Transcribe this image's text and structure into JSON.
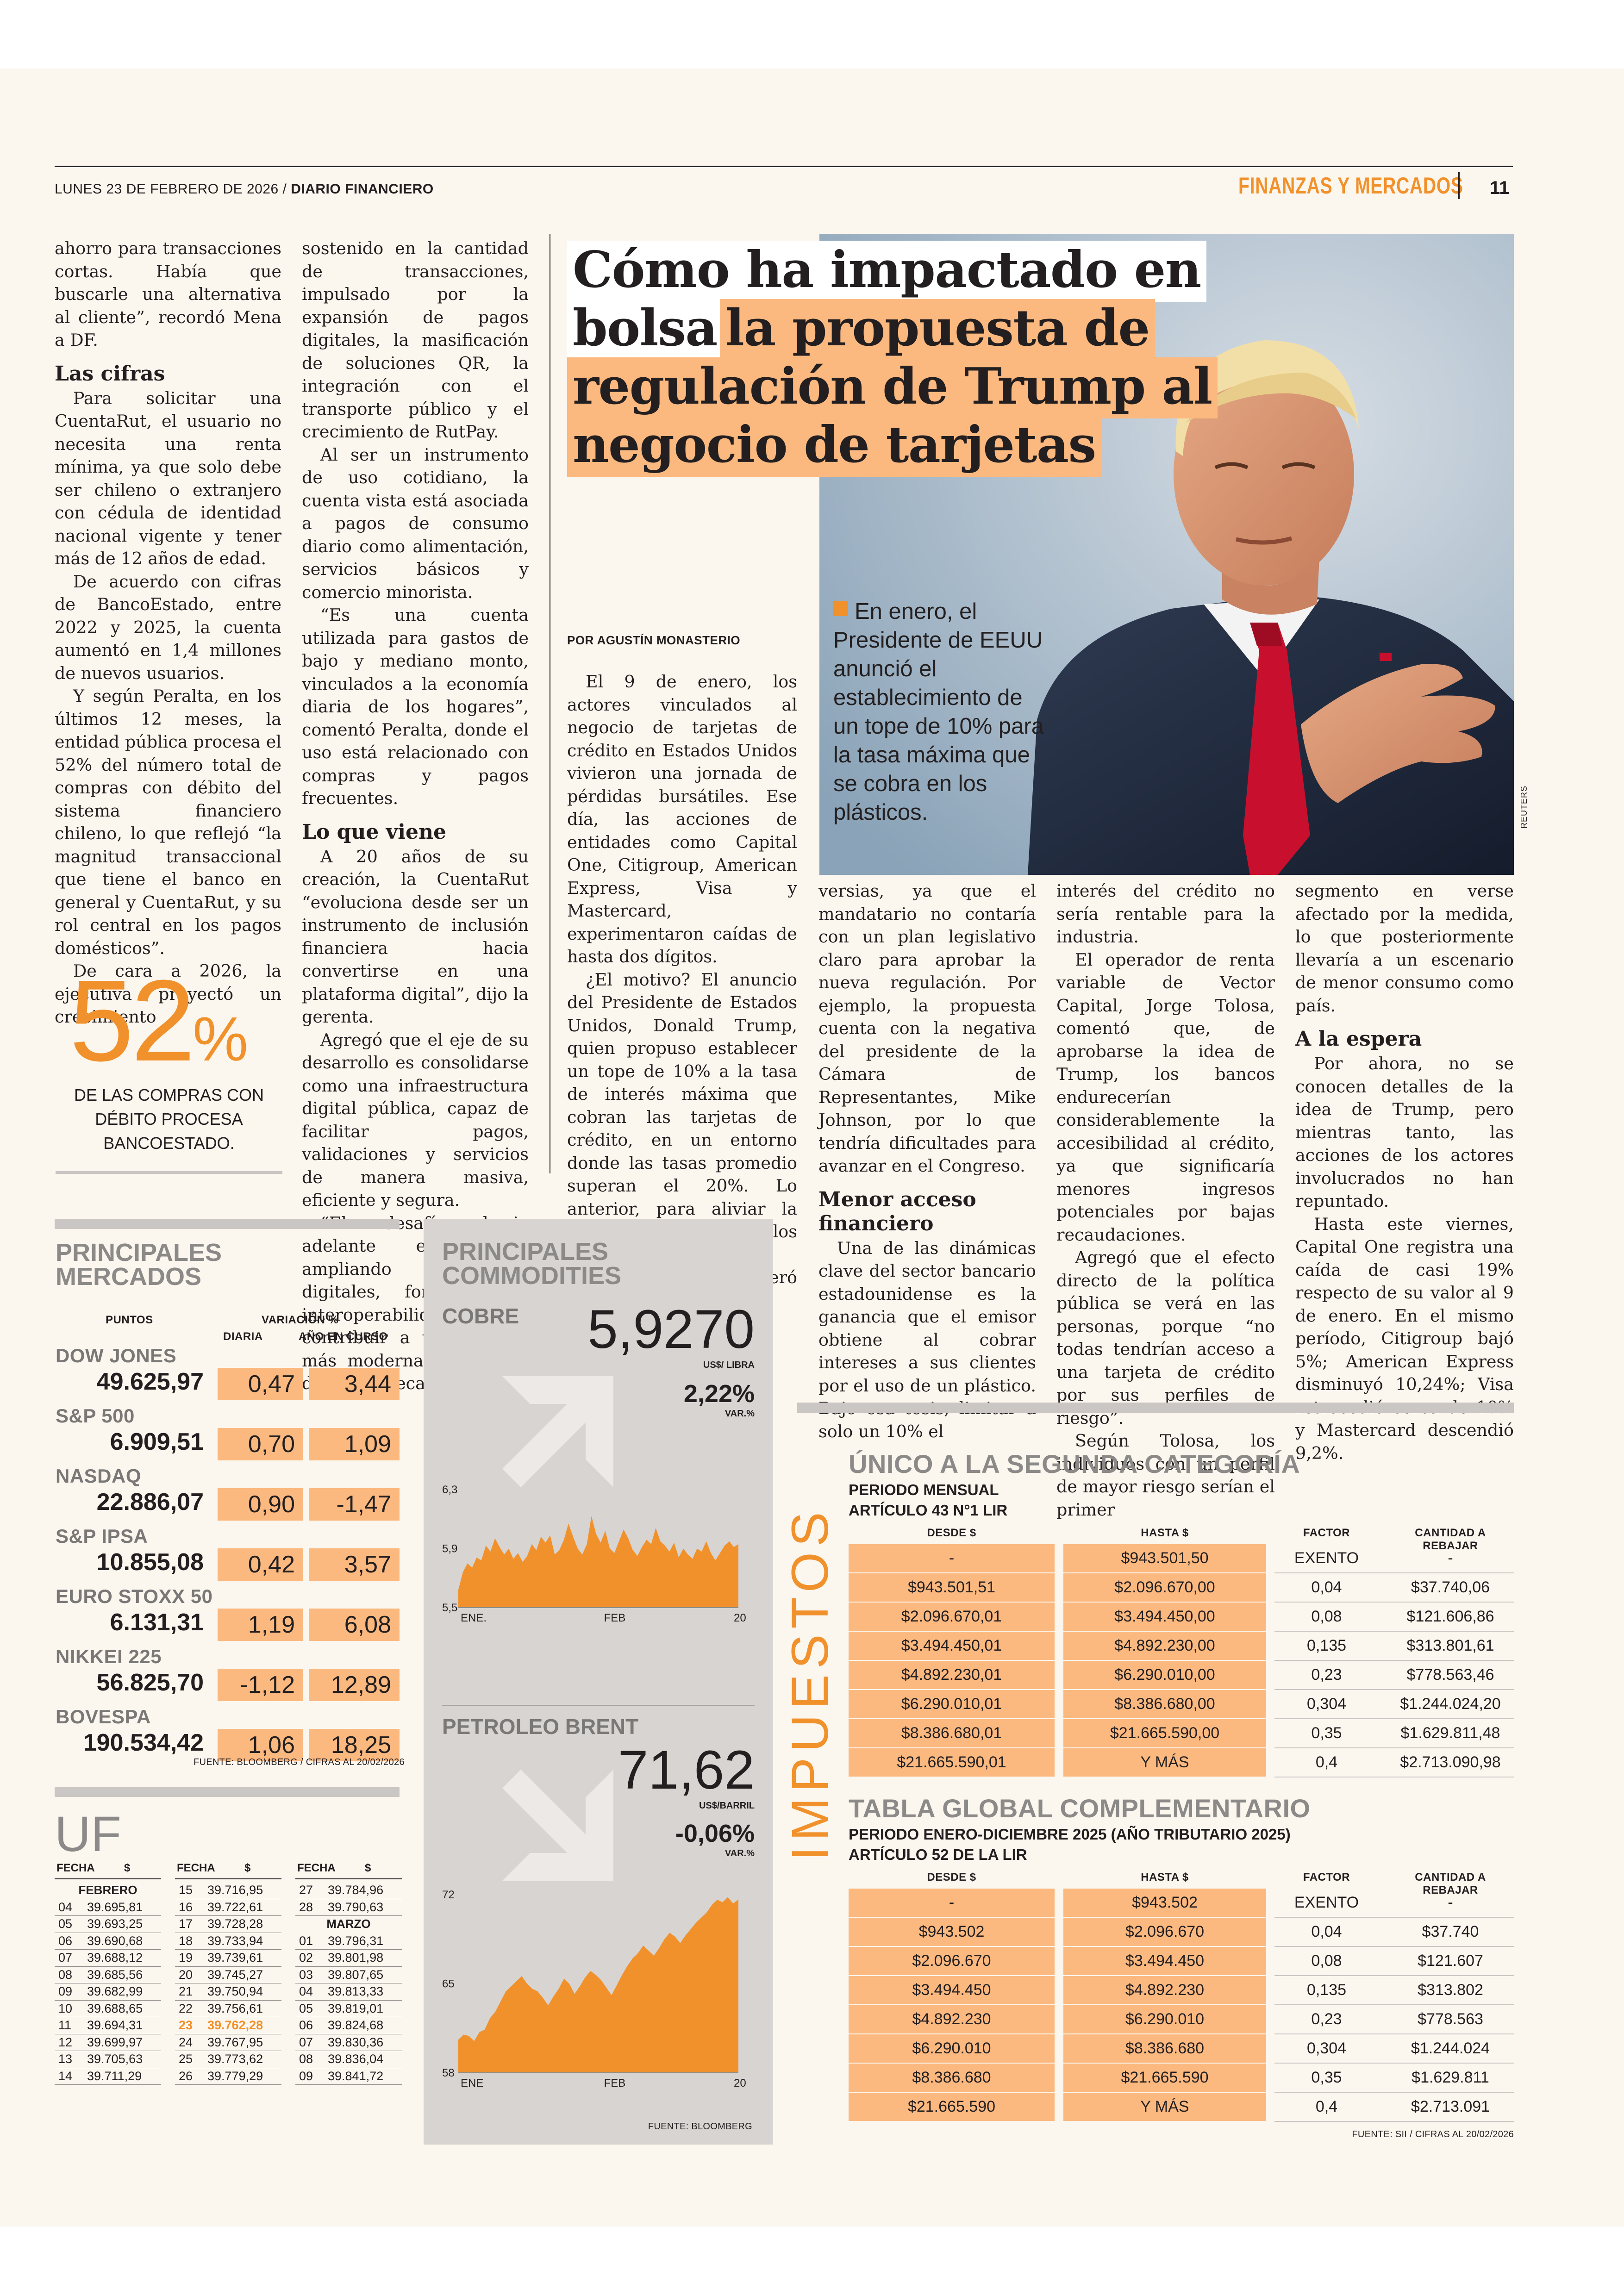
{
  "header": {
    "date": "LUNES 23 DE FEBRERO DE 2026",
    "sep": "/",
    "paper": "DIARIO FINANCIERO",
    "section": "FINANZAS Y MERCADOS",
    "page": "11"
  },
  "left_article": {
    "col1": [
      {
        "type": "p",
        "noind": true,
        "text": "ahorro para transacciones cortas. Había que buscarle una alternativa al cliente”, recordó Mena a DF."
      },
      {
        "type": "h",
        "text": "Las cifras"
      },
      {
        "type": "p",
        "text": "Para solicitar una CuentaRut, el usuario no necesita una renta mínima, ya que solo debe ser chileno o extranjero con cédula de identidad nacional vigente y tener más de 12 años de edad."
      },
      {
        "type": "p",
        "text": "De acuerdo con cifras de BancoEstado, entre 2022 y 2025, la cuenta aumentó en 1,4 millones de nuevos usuarios."
      },
      {
        "type": "p",
        "text": "Y según Peralta, en los últimos 12 meses, la entidad pública procesa el 52% del número total de compras con débito del sistema financiero chileno, lo que reflejó “la magnitud transaccional que tiene el banco en general y CuentaRut, y su rol central en los pagos domésticos”."
      },
      {
        "type": "p",
        "text": "De cara a 2026, la ejecutiva proyectó un crecimiento"
      }
    ],
    "col2": [
      {
        "type": "p",
        "noind": true,
        "text": "sostenido en la cantidad de transacciones, impulsado por la expansión de pagos digitales, la masificación de soluciones QR, la integración con el transporte público y el crecimiento de RutPay."
      },
      {
        "type": "p",
        "text": "Al ser un instrumento de uso cotidiano, la cuenta vista está asociada a pagos de consumo diario como alimentación, servicios básicos y comercio minorista."
      },
      {
        "type": "p",
        "text": "“Es una cuenta utilizada para gastos de bajo y mediano monto, vinculados a la economía diaria de los hogares”, comentó Peralta, donde el uso está relacionado con compras y pagos frecuentes."
      },
      {
        "type": "h",
        "text": "Lo que viene"
      },
      {
        "type": "p",
        "text": "A 20 años de su creación, la CuentaRut “evoluciona desde ser un instrumento de inclusión financiera hacia convertirse en una plataforma digital”, dijo la gerenta."
      },
      {
        "type": "p",
        "text": "Agregó que el eje de su desarrollo es consolidarse como una infraestructura digital pública, capaz de facilitar pagos, validaciones y servicios de manera masiva, eficiente y segura."
      },
      {
        "type": "p",
        "text": "“El desafío hacia adelante es seguir ampliando capacidades digitales, fortalecer la interoperabilidad y contribuir a una gestión más moderna y eficiente del país”, recalcó."
      }
    ],
    "stat_value": "52",
    "stat_unit": "%",
    "stat_caption": "DE LAS COMPRAS CON DÉBITO PROCESA BANCOESTADO."
  },
  "main_article": {
    "title_lines": [
      "Cómo ha impactado en",
      "bolsa la propuesta de",
      "regulación de Trump al",
      "negocio de tarjetas"
    ],
    "title_pre": "Cómo ha impactado en",
    "title_l2a": "bolsa",
    "title_l2b": "la propuesta de",
    "title_l3": "regulación de Trump al",
    "title_l4": "negocio de tarjetas",
    "byline": "POR AGUSTÍN MONASTERIO",
    "photo_caption": "En enero, el Presidente de EEUU anunció el establecimiento de un tope de 10% para la tasa máxima que se cobra en los plásticos.",
    "photo_credit": "REUTERS",
    "col3": [
      {
        "type": "p",
        "text": "El 9 de enero, los actores vinculados al negocio de tarjetas de crédito en Estados Unidos vivieron una jornada de pérdidas bursátiles. Ese día, las acciones de entidades como Capital One, Citigroup, American Express, Visa y Mastercard, experimentaron caídas de hasta dos dígitos."
      },
      {
        "type": "p",
        "text": "¿El motivo? El anuncio del Presidente de Estados Unidos, Donald Trump, quien propuso establecer un tope de 10% a la tasa de interés máxima que cobran las tarjetas de crédito, en un entorno donde las tasas promedio superan el 20%. Lo anterior, para aliviar la carga crediticia de los estadounidenses."
      },
      {
        "type": "p",
        "text": "La medida generó contro-"
      }
    ],
    "col4": [
      {
        "type": "p",
        "noind": true,
        "text": "versias, ya que el mandatario no contaría con un plan legislativo claro para aprobar la nueva regulación. Por ejemplo, la propuesta cuenta con la negativa del presidente de la Cámara de Representantes, Mike Johnson, por lo que tendría dificultades para avanzar en el Congreso."
      },
      {
        "type": "h",
        "text": "Menor acceso financiero"
      },
      {
        "type": "p",
        "text": "Una de las dinámicas clave del sector bancario estadounidense es la ganancia que el emisor obtiene al cobrar intereses a sus clientes por el uso de un plástico. Bajo esa tesis, limitar a solo un 10% el"
      }
    ],
    "col5": [
      {
        "type": "p",
        "noind": true,
        "text": "interés del crédito no sería rentable para la industria."
      },
      {
        "type": "p",
        "text": "El operador de renta variable de Vector Capital, Jorge Tolosa, comentó que, de aprobarse la idea de Trump, los bancos endurecerían considerablemente la accesibilidad al crédito, ya que significaría menores ingresos potenciales por bajas recaudaciones."
      },
      {
        "type": "p",
        "text": "Agregó que el efecto directo de la política pública se verá en las personas, porque “no todas tendrían acceso a una tarjeta de crédito por sus perfiles de riesgo”."
      },
      {
        "type": "p",
        "text": "Según Tolosa, los individuos con un perfil de mayor riesgo serían el primer"
      }
    ],
    "col6": [
      {
        "type": "p",
        "noind": true,
        "text": "segmento en verse afectado por la medida, lo que posteriormente llevaría a un escenario de menor consumo como país."
      },
      {
        "type": "h",
        "text": "A la espera"
      },
      {
        "type": "p",
        "text": "Por ahora, no se conocen detalles de la idea de Trump, pero mientras tanto, las acciones de los actores involucrados no han repuntado."
      },
      {
        "type": "p",
        "text": "Hasta este viernes, Capital One registra una caída de casi 19% respecto de su valor al 9 de enero. En el mismo período, Citigroup bajó 5%; American Express disminuyó 10,24%; Visa retrocedió cerca de 10% y Mastercard descendió 9,2%."
      }
    ]
  },
  "markets": {
    "title_l1": "PRINCIPALES",
    "title_l2": "MERCADOS",
    "hdr_points": "PUNTOS",
    "hdr_variation": "VARIACIÓN %",
    "hdr_daily": "DIARIA",
    "hdr_ytd": "AÑO EN CURSO",
    "rows": [
      {
        "name": "DOW JONES",
        "points": "49.625,97",
        "daily": "0,47",
        "ytd": "3,44"
      },
      {
        "name": "S&P 500",
        "points": "6.909,51",
        "daily": "0,70",
        "ytd": "1,09"
      },
      {
        "name": "NASDAQ",
        "points": "22.886,07",
        "daily": "0,90",
        "ytd": "-1,47"
      },
      {
        "name": "S&P IPSA",
        "points": "10.855,08",
        "daily": "0,42",
        "ytd": "3,57"
      },
      {
        "name": "EURO STOXX 50",
        "points": "6.131,31",
        "daily": "1,19",
        "ytd": "6,08"
      },
      {
        "name": "NIKKEI 225",
        "points": "56.825,70",
        "daily": "-1,12",
        "ytd": "12,89"
      },
      {
        "name": "BOVESPA",
        "points": "190.534,42",
        "daily": "1,06",
        "ytd": "18,25"
      }
    ],
    "source": "FUENTE: BLOOMBERG / CIFRAS AL 20/02/2026"
  },
  "uf": {
    "title": "UF",
    "hdr_date": "FECHA",
    "hdr_value": "$",
    "month1": "FEBRERO",
    "month2": "MARZO",
    "col1": [
      [
        "04",
        "39.695,81"
      ],
      [
        "05",
        "39.693,25"
      ],
      [
        "06",
        "39.690,68"
      ],
      [
        "07",
        "39.688,12"
      ],
      [
        "08",
        "39.685,56"
      ],
      [
        "09",
        "39.682,99"
      ],
      [
        "10",
        "39.688,65"
      ],
      [
        "11",
        "39.694,31"
      ],
      [
        "12",
        "39.699,97"
      ],
      [
        "13",
        "39.705,63"
      ],
      [
        "14",
        "39.711,29"
      ]
    ],
    "col2": [
      [
        "15",
        "39.716,95"
      ],
      [
        "16",
        "39.722,61"
      ],
      [
        "17",
        "39.728,28"
      ],
      [
        "18",
        "39.733,94"
      ],
      [
        "19",
        "39.739,61"
      ],
      [
        "20",
        "39.745,27"
      ],
      [
        "21",
        "39.750,94"
      ],
      [
        "22",
        "39.756,61"
      ],
      [
        "23",
        "39.762,28"
      ],
      [
        "24",
        "39.767,95"
      ],
      [
        "25",
        "39.773,62"
      ],
      [
        "26",
        "39.779,29"
      ]
    ],
    "col3a": [
      [
        "27",
        "39.784,96"
      ],
      [
        "28",
        "39.790,63"
      ]
    ],
    "col3b": [
      [
        "01",
        "39.796,31"
      ],
      [
        "02",
        "39.801,98"
      ],
      [
        "03",
        "39.807,65"
      ],
      [
        "04",
        "39.813,33"
      ],
      [
        "05",
        "39.819,01"
      ],
      [
        "06",
        "39.824,68"
      ],
      [
        "07",
        "39.830,36"
      ],
      [
        "08",
        "39.836,04"
      ],
      [
        "09",
        "39.841,72"
      ]
    ],
    "highlight_color": "#f1912b"
  },
  "commodities": {
    "title_l1": "PRINCIPALES",
    "title_l2": "COMMODITIES",
    "copper": {
      "name": "COBRE",
      "value": "5,9270",
      "unit": "US$/ LIBRA",
      "change": "2,22%",
      "change_label": "VAR.%"
    },
    "brent": {
      "name": "PETROLEO BRENT",
      "value": "71,62",
      "unit": "US$/BARRIL",
      "change": "-0,06%",
      "change_label": "VAR.%"
    },
    "source": "FUENTE: BLOOMBERG"
  },
  "chart_data": [
    {
      "type": "area",
      "y_ticks": [
        "6,3",
        "5,9",
        "5,5"
      ],
      "x_ticks": [
        "ENE.",
        "FEB",
        "20"
      ],
      "ylim": [
        5.5,
        6.3
      ],
      "values": [
        5.62,
        5.74,
        5.8,
        5.77,
        5.84,
        5.82,
        5.92,
        5.88,
        5.97,
        5.91,
        5.86,
        5.9,
        5.83,
        5.87,
        5.81,
        5.85,
        5.93,
        5.89,
        5.98,
        5.94,
        5.99,
        5.86,
        5.89,
        5.96,
        6.07,
        5.98,
        5.9,
        5.86,
        5.93,
        6.12,
        6.0,
        5.94,
        6.02,
        5.9,
        5.87,
        5.95,
        6.03,
        5.97,
        5.89,
        5.85,
        5.91,
        5.96,
        5.93,
        6.04,
        5.95,
        5.92,
        5.88,
        5.94,
        5.84,
        5.9,
        5.86,
        5.83,
        5.9,
        5.88,
        5.95,
        5.87,
        5.82,
        5.87,
        5.92,
        5.95,
        5.91,
        5.93
      ]
    },
    {
      "type": "area",
      "y_ticks": [
        "72",
        "65",
        "58"
      ],
      "x_ticks": [
        "ENE",
        "FEB",
        "20"
      ],
      "ylim": [
        58,
        72
      ],
      "values": [
        60.6,
        61.0,
        60.9,
        60.5,
        61.2,
        61.4,
        62.3,
        62.8,
        63.6,
        64.4,
        64.8,
        65.2,
        65.6,
        65.0,
        64.6,
        64.4,
        63.9,
        63.3,
        64.0,
        64.6,
        65.4,
        65.0,
        64.2,
        64.8,
        65.5,
        66.0,
        65.7,
        65.3,
        64.7,
        64.1,
        64.9,
        65.7,
        66.4,
        67.0,
        67.4,
        68.0,
        67.6,
        67.2,
        67.8,
        68.5,
        69.0,
        68.7,
        68.2,
        68.8,
        69.3,
        69.8,
        70.2,
        70.6,
        71.2,
        71.6,
        71.4,
        71.8,
        71.3,
        71.62
      ]
    }
  ],
  "taxes": {
    "vertical_label": "IMPUESTOS",
    "t1": {
      "title": "ÚNICO A LA SEGUNDA CATEGORÍA",
      "sub1": "PERIODO MENSUAL",
      "sub2": "ARTÍCULO 43 N°1 LIR",
      "headers": [
        "DESDE $",
        "HASTA $",
        "FACTOR",
        "CANTIDAD A REBAJAR"
      ],
      "rows": [
        [
          "-",
          "$943.501,50",
          "EXENTO",
          "-"
        ],
        [
          "$943.501,51",
          "$2.096.670,00",
          "0,04",
          "$37.740,06"
        ],
        [
          "$2.096.670,01",
          "$3.494.450,00",
          "0,08",
          "$121.606,86"
        ],
        [
          "$3.494.450,01",
          "$4.892.230,00",
          "0,135",
          "$313.801,61"
        ],
        [
          "$4.892.230,01",
          "$6.290.010,00",
          "0,23",
          "$778.563,46"
        ],
        [
          "$6.290.010,01",
          "$8.386.680,00",
          "0,304",
          "$1.244.024,20"
        ],
        [
          "$8.386.680,01",
          "$21.665.590,00",
          "0,35",
          "$1.629.811,48"
        ],
        [
          "$21.665.590,01",
          "Y MÁS",
          "0,4",
          "$2.713.090,98"
        ]
      ]
    },
    "t2": {
      "title": "TABLA GLOBAL COMPLEMENTARIO",
      "sub1": "PERIODO ENERO-DICIEMBRE 2025 (AÑO TRIBUTARIO 2025)",
      "sub2": "ARTÍCULO 52 DE LA LIR",
      "headers": [
        "DESDE $",
        "HASTA $",
        "FACTOR",
        "CANTIDAD A REBAJAR"
      ],
      "rows": [
        [
          "-",
          "$943.502",
          "EXENTO",
          "-"
        ],
        [
          "$943.502",
          "$2.096.670",
          "0,04",
          "$37.740"
        ],
        [
          "$2.096.670",
          "$3.494.450",
          "0,08",
          "$121.607"
        ],
        [
          "$3.494.450",
          "$4.892.230",
          "0,135",
          "$313.802"
        ],
        [
          "$4.892.230",
          "$6.290.010",
          "0,23",
          "$778.563"
        ],
        [
          "$6.290.010",
          "$8.386.680",
          "0,304",
          "$1.244.024"
        ],
        [
          "$8.386.680",
          "$21.665.590",
          "0,35",
          "$1.629.811"
        ],
        [
          "$21.665.590",
          "Y MÁS",
          "0,4",
          "$2.713.091"
        ]
      ]
    },
    "source": "FUENTE: SII / CIFRAS AL 20/02/2026"
  }
}
